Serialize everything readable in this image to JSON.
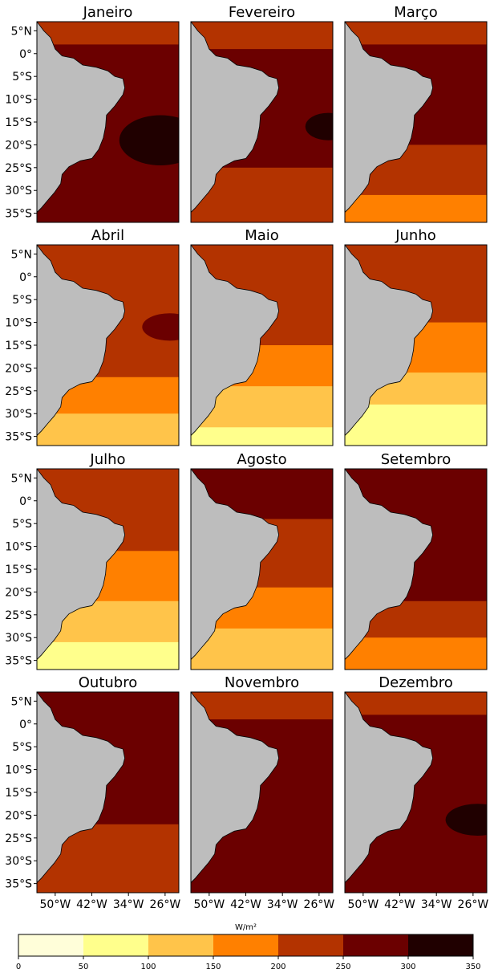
{
  "chart_data": {
    "type": "map_grid",
    "panels": [
      {
        "title": "Janeiro"
      },
      {
        "title": "Fevereiro"
      },
      {
        "title": "Março"
      },
      {
        "title": "Abril"
      },
      {
        "title": "Maio"
      },
      {
        "title": "Junho"
      },
      {
        "title": "Julho"
      },
      {
        "title": "Agosto"
      },
      {
        "title": "Setembro"
      },
      {
        "title": "Outubro"
      },
      {
        "title": "Novembro"
      },
      {
        "title": "Dezembro"
      }
    ],
    "xlim": [
      -54,
      -23
    ],
    "ylim": [
      -37,
      7
    ],
    "xticks": [
      {
        "value": -50,
        "label": "50°W"
      },
      {
        "value": -42,
        "label": "42°W"
      },
      {
        "value": -34,
        "label": "34°W"
      },
      {
        "value": -26,
        "label": "26°W"
      }
    ],
    "yticks": [
      {
        "value": 5,
        "label": "5°N"
      },
      {
        "value": 0,
        "label": "0°"
      },
      {
        "value": -5,
        "label": "5°S"
      },
      {
        "value": -10,
        "label": "10°S"
      },
      {
        "value": -15,
        "label": "15°S"
      },
      {
        "value": -20,
        "label": "20°S"
      },
      {
        "value": -25,
        "label": "25°S"
      },
      {
        "value": -30,
        "label": "30°S"
      },
      {
        "value": -35,
        "label": "35°S"
      }
    ],
    "colorbar": {
      "label": "W/m²",
      "ticks": [
        0,
        50,
        100,
        150,
        200,
        250,
        300,
        350
      ],
      "colors": [
        "#fffed9",
        "#ffff8c",
        "#ffc44a",
        "#ff8000",
        "#b33300",
        "#6b0000",
        "#200000"
      ]
    }
  }
}
